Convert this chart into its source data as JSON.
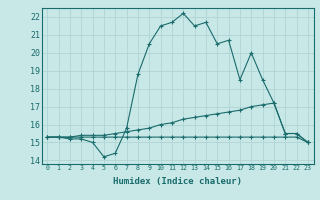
{
  "title": "",
  "xlabel": "Humidex (Indice chaleur)",
  "ylabel": "",
  "bg_color": "#c8e8e8",
  "grid_color": "#b0d4d4",
  "line_color": "#1a6b6b",
  "xlim": [
    -0.5,
    23.5
  ],
  "ylim": [
    13.8,
    22.5
  ],
  "xticks": [
    0,
    1,
    2,
    3,
    4,
    5,
    6,
    7,
    8,
    9,
    10,
    11,
    12,
    13,
    14,
    15,
    16,
    17,
    18,
    19,
    20,
    21,
    22,
    23
  ],
  "yticks": [
    14,
    15,
    16,
    17,
    18,
    19,
    20,
    21,
    22
  ],
  "line1_x": [
    0,
    1,
    2,
    3,
    4,
    5,
    6,
    7,
    8,
    9,
    10,
    11,
    12,
    13,
    14,
    15,
    16,
    17,
    18,
    19,
    20,
    21,
    22,
    23
  ],
  "line1_y": [
    15.3,
    15.3,
    15.2,
    15.2,
    15.0,
    14.2,
    14.4,
    15.8,
    18.8,
    20.5,
    21.5,
    21.7,
    22.2,
    21.5,
    21.7,
    20.5,
    20.7,
    18.5,
    20.0,
    18.5,
    17.2,
    15.5,
    15.5,
    15.0
  ],
  "line2_x": [
    0,
    1,
    2,
    3,
    4,
    5,
    6,
    7,
    8,
    9,
    10,
    11,
    12,
    13,
    14,
    15,
    16,
    17,
    18,
    19,
    20,
    21,
    22,
    23
  ],
  "line2_y": [
    15.3,
    15.3,
    15.3,
    15.3,
    15.3,
    15.3,
    15.3,
    15.3,
    15.3,
    15.3,
    15.3,
    15.3,
    15.3,
    15.3,
    15.3,
    15.3,
    15.3,
    15.3,
    15.3,
    15.3,
    15.3,
    15.3,
    15.3,
    15.0
  ],
  "line3_x": [
    0,
    1,
    2,
    3,
    4,
    5,
    6,
    7,
    8,
    9,
    10,
    11,
    12,
    13,
    14,
    15,
    16,
    17,
    18,
    19,
    20,
    21,
    22,
    23
  ],
  "line3_y": [
    15.3,
    15.3,
    15.3,
    15.4,
    15.4,
    15.4,
    15.5,
    15.6,
    15.7,
    15.8,
    16.0,
    16.1,
    16.3,
    16.4,
    16.5,
    16.6,
    16.7,
    16.8,
    17.0,
    17.1,
    17.2,
    15.5,
    15.5,
    15.0
  ],
  "xlabel_fontsize": 6.5,
  "xtick_fontsize": 4.8,
  "ytick_fontsize": 6.0
}
